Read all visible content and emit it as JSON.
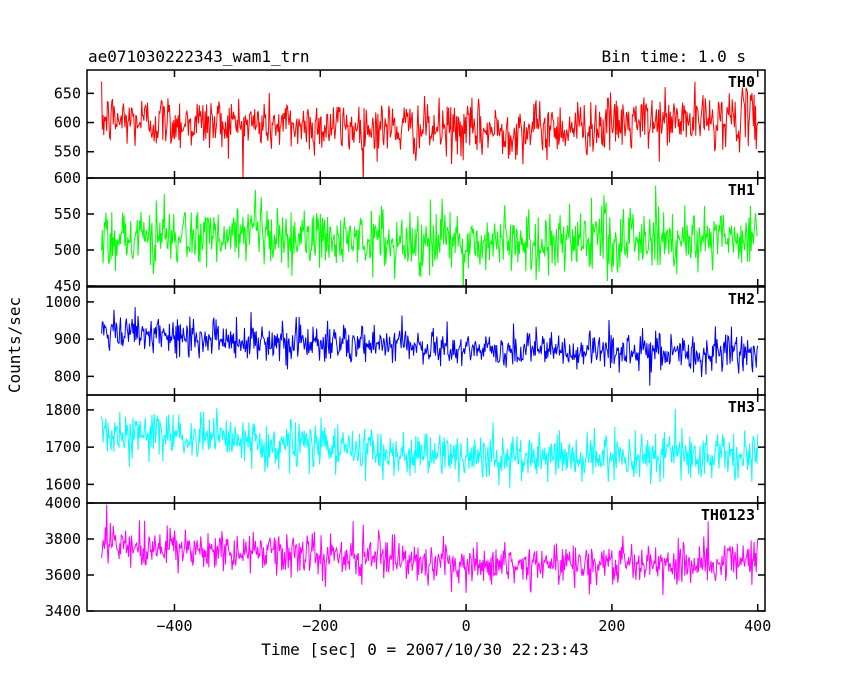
{
  "header": {
    "title": "ae071030222343_wam1_trn",
    "bin_time": "Bin time: 1.0 s"
  },
  "chart_data": {
    "type": "line",
    "xlabel": "Time [sec] 0 = 2007/10/30 22:23:43",
    "ylabel": "Counts/sec",
    "xlim": [
      -520,
      410
    ],
    "x_ticks": [
      -400,
      -200,
      0,
      200,
      400
    ],
    "x_tick_labels": [
      "−400",
      "−200",
      "0",
      "200",
      "400"
    ],
    "x_range_data": [
      -500,
      400
    ],
    "x_step": 1.0,
    "panels": [
      {
        "name": "TH0",
        "color": "#ff0000",
        "ylim": [
          505,
          690
        ],
        "yticks": [
          550,
          600,
          650
        ],
        "mean_start": 605,
        "mean_mid": 585,
        "mean_end": 610,
        "amp": 38
      },
      {
        "name": "TH1",
        "color": "#00ff00",
        "ylim": [
          450,
          600
        ],
        "yticks": [
          450,
          500,
          550,
          600
        ],
        "mean_start": 520,
        "mean_mid": 510,
        "mean_end": 520,
        "amp": 36
      },
      {
        "name": "TH2",
        "color": "#0000ff",
        "ylim": [
          750,
          1040
        ],
        "yticks": [
          800,
          900,
          1000
        ],
        "mean_start": 915,
        "mean_mid": 870,
        "mean_end": 860,
        "amp": 42
      },
      {
        "name": "TH3",
        "color": "#00ffff",
        "ylim": [
          1550,
          1840
        ],
        "yticks": [
          1600,
          1700,
          1800
        ],
        "mean_start": 1740,
        "mean_mid": 1670,
        "mean_end": 1680,
        "amp": 52
      },
      {
        "name": "TH0123",
        "color": "#ff00ff",
        "ylim": [
          3400,
          4000
        ],
        "yticks": [
          3400,
          3600,
          3800,
          4000
        ],
        "mean_start": 3760,
        "mean_mid": 3660,
        "mean_end": 3680,
        "amp": 95
      }
    ]
  }
}
